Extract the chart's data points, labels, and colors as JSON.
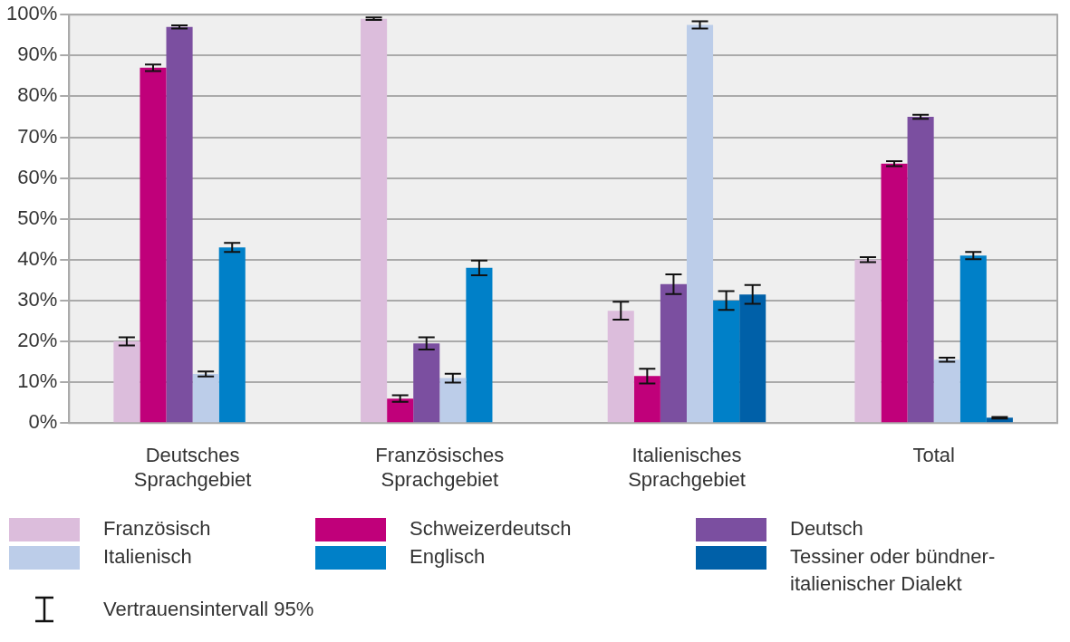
{
  "chart_data": {
    "type": "bar",
    "categories": [
      "Deutsches Sprachgebiet",
      "Französisches Sprachgebiet",
      "Italienisches Sprachgebiet",
      "Total"
    ],
    "series": [
      {
        "name": "Französisch",
        "color": "#dcbddc",
        "values": [
          20,
          99,
          27.5,
          40
        ],
        "errors": [
          1,
          0.3,
          2.2,
          0.6
        ]
      },
      {
        "name": "Schweizerdeutsch",
        "color": "#c0007a",
        "values": [
          87,
          6,
          11.5,
          63.5
        ],
        "errors": [
          0.8,
          0.8,
          1.8,
          0.6
        ]
      },
      {
        "name": "Deutsch",
        "color": "#7b4fa0",
        "values": [
          97,
          19.5,
          34,
          75
        ],
        "errors": [
          0.4,
          1.5,
          2.4,
          0.5
        ]
      },
      {
        "name": "Italienisch",
        "color": "#bccde9",
        "values": [
          12,
          11,
          97.5,
          15.5
        ],
        "errors": [
          0.6,
          1.1,
          0.9,
          0.5
        ]
      },
      {
        "name": "Englisch",
        "color": "#0080c8",
        "values": [
          43,
          38,
          30,
          41
        ],
        "errors": [
          1.1,
          1.8,
          2.3,
          0.9
        ]
      },
      {
        "name": "Tessiner oder bündner-italienischer Dialekt",
        "color": "#0060a8",
        "values": [
          null,
          null,
          31.5,
          1.3
        ],
        "errors": [
          null,
          null,
          2.3,
          0.2
        ]
      }
    ],
    "ylim": [
      0,
      100
    ],
    "yticks": [
      {
        "value": 0,
        "label": "0%"
      },
      {
        "value": 10,
        "label": "10%"
      },
      {
        "value": 20,
        "label": "20%"
      },
      {
        "value": 30,
        "label": "30%"
      },
      {
        "value": 40,
        "label": "40%"
      },
      {
        "value": 50,
        "label": "50%"
      },
      {
        "value": 60,
        "label": "60%"
      },
      {
        "value": 70,
        "label": "70%"
      },
      {
        "value": 80,
        "label": "80%"
      },
      {
        "value": 90,
        "label": "90%"
      },
      {
        "value": 100,
        "label": "100%"
      }
    ],
    "grid": "y",
    "legend": "bottom",
    "annotations": [
      "Vertrauensintervall 95%"
    ]
  }
}
